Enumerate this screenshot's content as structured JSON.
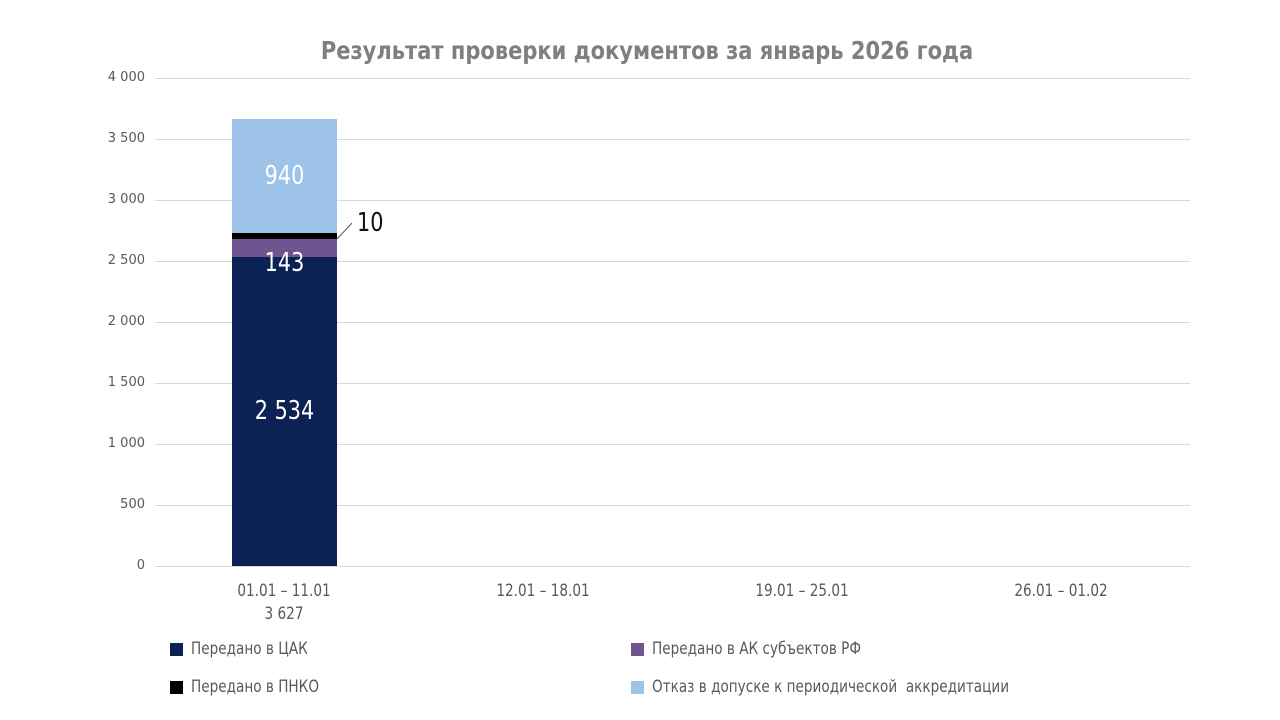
{
  "chart_data": {
    "type": "bar",
    "stacked": true,
    "title": "Результат проверки документов за январь 2026 года",
    "categories": [
      {
        "label": "01.01 – 11.01",
        "sublabel": "3 627"
      },
      {
        "label": "12.01 – 18.01",
        "sublabel": ""
      },
      {
        "label": "19.01 – 25.01",
        "sublabel": ""
      },
      {
        "label": "26.01 – 01.02",
        "sublabel": ""
      }
    ],
    "series": [
      {
        "name": "Передано в ЦАК",
        "color": "#0d2254",
        "values": [
          2534,
          0,
          0,
          0
        ],
        "value_labels": [
          "2 534",
          "",
          "",
          ""
        ],
        "label_placement": "inside"
      },
      {
        "name": "Передано в АК субъектов РФ",
        "color": "#6f5490",
        "values": [
          143,
          0,
          0,
          0
        ],
        "value_labels": [
          "143",
          "",
          "",
          ""
        ],
        "label_placement": "inside"
      },
      {
        "name": "Передано в ПНКО",
        "color": "#000000",
        "values": [
          10,
          0,
          0,
          0
        ],
        "value_labels": [
          "10",
          "",
          "",
          ""
        ],
        "label_placement": "callout"
      },
      {
        "name": "Отказ в допуске к периодической  аккредитации",
        "color": "#9dc3e8",
        "values": [
          940,
          0,
          0,
          0
        ],
        "value_labels": [
          "940",
          "",
          "",
          ""
        ],
        "label_placement": "inside"
      }
    ],
    "ylim": [
      0,
      4000
    ],
    "ytick_step": 500,
    "ytick_labels": [
      "0",
      "500",
      "1 000",
      "1 500",
      "2 000",
      "2 500",
      "3 000",
      "3 500",
      "4 000"
    ],
    "grid": true,
    "legend_position": "bottom",
    "colors": {
      "grid_line": "#d9d9d9",
      "axis_text": "#595959",
      "title_text": "#7f7f7f",
      "bar_label_text": "#ffffff",
      "callout_text": "#111111"
    }
  }
}
